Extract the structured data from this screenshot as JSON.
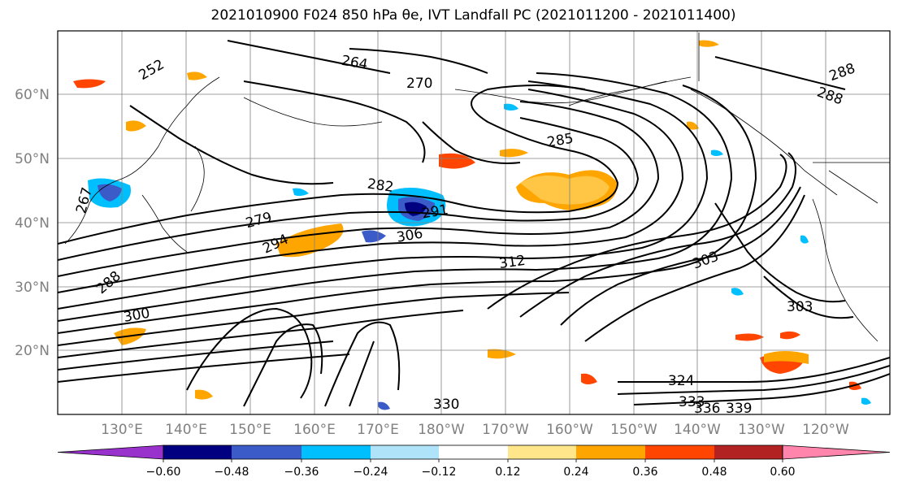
{
  "title": "2021010900 F024 850 hPa θe, IVT Landfall PC (2021011200 - 2021011400)",
  "lat_labels": [
    "60°N",
    "50°N",
    "40°N",
    "30°N",
    "20°N"
  ],
  "lon_labels": [
    "130°E",
    "140°E",
    "150°E",
    "160°E",
    "170°E",
    "180°W",
    "170°W",
    "160°W",
    "150°W",
    "140°W",
    "130°W",
    "120°W"
  ],
  "colorbar": {
    "colors": [
      "#9932cc",
      "#000080",
      "#3a5bc8",
      "#00bfff",
      "#aee3fa",
      "#ffffff",
      "#ffe68a",
      "#ffa500",
      "#ff4500",
      "#b22222",
      "#ff85ad"
    ],
    "tick_labels": [
      "−0.60",
      "−0.48",
      "−0.36",
      "−0.24",
      "−0.12",
      "0.12",
      "0.24",
      "0.36",
      "0.48",
      "0.60"
    ]
  },
  "contour_labels": [
    "264",
    "270",
    "252",
    "285",
    "282",
    "291",
    "267",
    "279",
    "294",
    "306",
    "288",
    "300",
    "303",
    "303",
    "312",
    "324",
    "330",
    "333",
    "336",
    "339",
    "288",
    "288"
  ]
}
